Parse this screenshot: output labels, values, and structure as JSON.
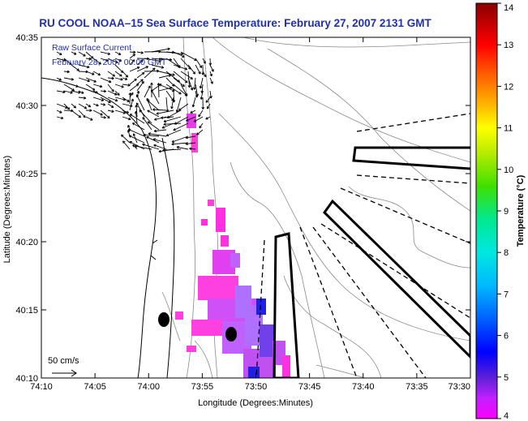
{
  "title": "RU COOL  NOAA–15  Sea Surface Temperature:  February 27, 2007 2131 GMT",
  "overlay": {
    "line1": "Raw Surface Current",
    "line2": "February 28, 2007 00:00 GMT"
  },
  "scale_label": "50 cm/s",
  "axes": {
    "xlabel": "Longitude (Degrees:Minutes)",
    "ylabel": "Latitude (Degrees:Minutes)",
    "x_ticks": [
      "74:10",
      "74:05",
      "74:00",
      "73:55",
      "73:50",
      "73:45",
      "73:40",
      "73:35",
      "73:30"
    ],
    "y_ticks": [
      "40:35",
      "40:30",
      "40:25",
      "40:20",
      "40:15",
      "40:10"
    ]
  },
  "colorbar": {
    "label": "Temperature (°C)",
    "ticks": [
      "14",
      "13",
      "12",
      "11",
      "10",
      "9",
      "8",
      "7",
      "6",
      "5",
      "4"
    ],
    "min": 4,
    "max": 14
  }
}
